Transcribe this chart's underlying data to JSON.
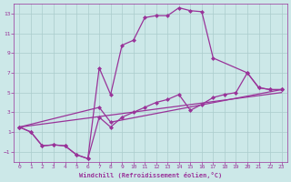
{
  "background_color": "#cce8e8",
  "grid_color": "#aacccc",
  "line_color": "#993399",
  "marker_color": "#993399",
  "xlabel": "Windchill (Refroidissement éolien,°C)",
  "xlabel_color": "#993399",
  "tick_color": "#993399",
  "xlim": [
    -0.5,
    23.5
  ],
  "ylim": [
    -2.0,
    14.0
  ],
  "xticks": [
    0,
    1,
    2,
    3,
    4,
    5,
    6,
    7,
    8,
    9,
    10,
    11,
    12,
    13,
    14,
    15,
    16,
    17,
    18,
    19,
    20,
    21,
    22,
    23
  ],
  "yticks": [
    -1,
    1,
    3,
    5,
    7,
    9,
    11,
    13
  ],
  "curve1_x": [
    0,
    1,
    2,
    3,
    4,
    5,
    6,
    7,
    8,
    9,
    10,
    11,
    12,
    13,
    14,
    15,
    16,
    17,
    20,
    21,
    22,
    23
  ],
  "curve1_y": [
    1.5,
    1.0,
    -0.4,
    -0.3,
    -0.4,
    -1.3,
    -1.7,
    7.5,
    4.8,
    9.8,
    10.3,
    12.6,
    12.8,
    12.8,
    13.6,
    13.3,
    13.2,
    8.5,
    7.0,
    5.5,
    5.3,
    5.3
  ],
  "curve2_x": [
    0,
    1,
    2,
    3,
    4,
    5,
    6,
    7,
    8,
    9,
    10,
    11,
    12,
    13,
    14,
    15,
    16,
    17,
    18,
    19,
    20,
    21,
    22,
    23
  ],
  "curve2_y": [
    1.5,
    1.0,
    -0.4,
    -0.3,
    -0.4,
    -1.3,
    -1.7,
    2.5,
    1.5,
    2.5,
    3.0,
    3.5,
    4.0,
    4.3,
    4.8,
    3.2,
    3.8,
    4.5,
    4.8,
    5.0,
    7.0,
    5.5,
    5.3,
    5.3
  ],
  "curve3_x": [
    0,
    7,
    8,
    23
  ],
  "curve3_y": [
    1.5,
    3.5,
    2.0,
    5.3
  ],
  "curve4_x": [
    0,
    23
  ],
  "curve4_y": [
    1.5,
    5.0
  ]
}
